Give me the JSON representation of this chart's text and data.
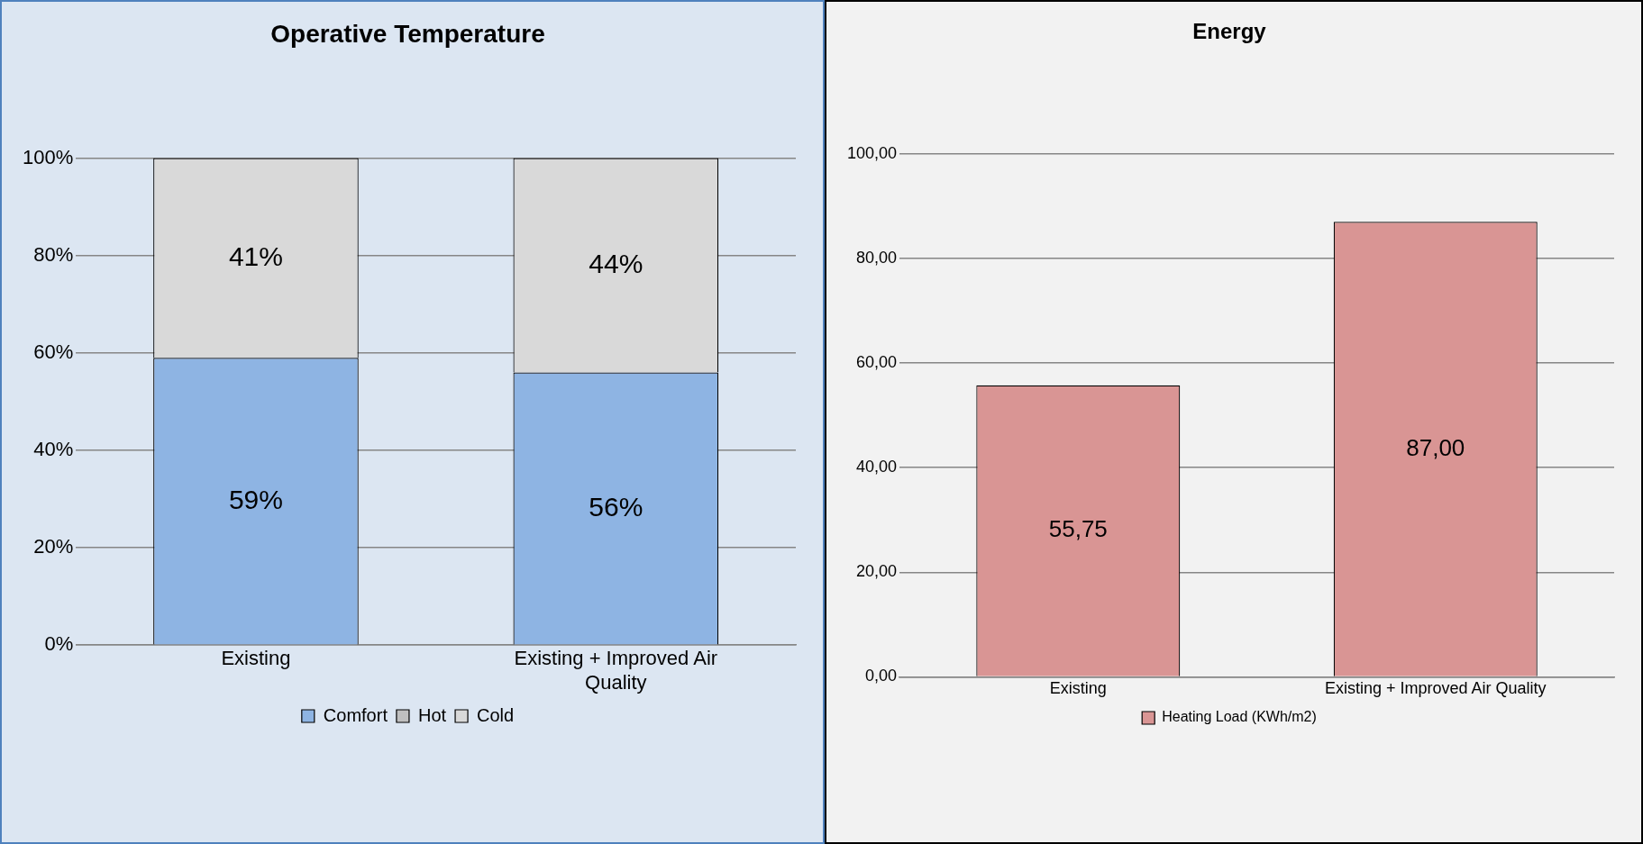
{
  "chart_data": [
    {
      "type": "bar",
      "title": "Operative Temperature",
      "categories": [
        "Existing",
        "Existing + Improved Air Quality"
      ],
      "stacked": true,
      "series": [
        {
          "name": "Comfort",
          "color": "#8eb4e3",
          "values": [
            59,
            56
          ],
          "value_labels": [
            "59%",
            "56%"
          ]
        },
        {
          "name": "Hot",
          "color": "#bfbfbf",
          "values": [
            0,
            0
          ],
          "value_labels": [
            null,
            null
          ]
        },
        {
          "name": "Cold",
          "color": "#d9d9d9",
          "values": [
            41,
            44
          ],
          "value_labels": [
            "41%",
            "44%"
          ]
        }
      ],
      "ylim": [
        0,
        100
      ],
      "yticks": [
        {
          "value": 0,
          "label": "0%"
        },
        {
          "value": 20,
          "label": "20%"
        },
        {
          "value": 40,
          "label": "40%"
        },
        {
          "value": 60,
          "label": "60%"
        },
        {
          "value": 80,
          "label": "80%"
        },
        {
          "value": 100,
          "label": "100%"
        }
      ],
      "grid": "y",
      "legend": "bottom"
    },
    {
      "type": "bar",
      "title": "Energy",
      "categories": [
        "Existing",
        "Existing + Improved Air Quality"
      ],
      "series": [
        {
          "name": "Heating Load (KWh/m2)",
          "color": "#d99594",
          "values": [
            55.75,
            87.0
          ],
          "value_labels": [
            "55,75",
            "87,00"
          ]
        }
      ],
      "ylim": [
        0,
        100
      ],
      "yticks": [
        {
          "value": 0,
          "label": "0,00"
        },
        {
          "value": 20,
          "label": "20,00"
        },
        {
          "value": 40,
          "label": "40,00"
        },
        {
          "value": 60,
          "label": "60,00"
        },
        {
          "value": 80,
          "label": "80,00"
        },
        {
          "value": 100,
          "label": "100,00"
        }
      ],
      "grid": "y",
      "legend": "bottom"
    }
  ]
}
